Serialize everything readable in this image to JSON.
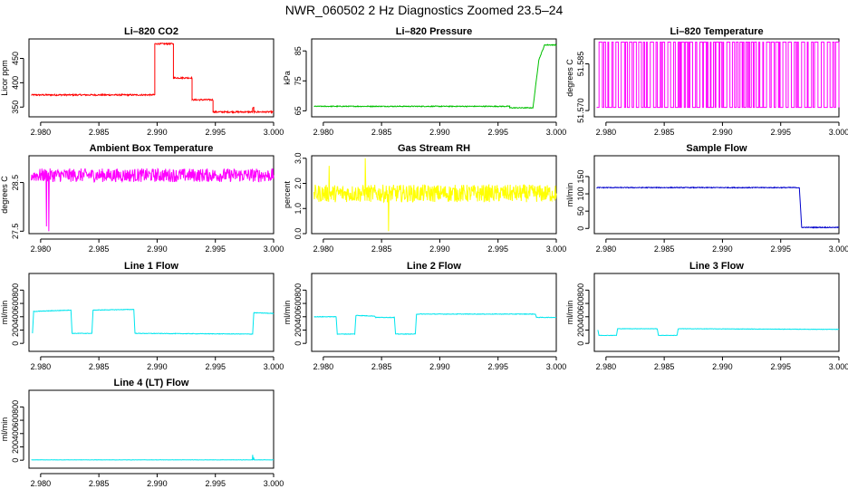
{
  "figure": {
    "title": "NWR_060502  2 Hz Diagnostics Zoomed 23.5–24"
  },
  "chart_data": [
    {
      "type": "line",
      "title": "Li–820 CO2",
      "ylabel": "Licor ppm",
      "color": "#ff0000",
      "xlim": [
        2.979,
        3.0
      ],
      "ylim": [
        330,
        490
      ],
      "xticks": [
        2.98,
        2.985,
        2.99,
        2.995,
        3.0
      ],
      "xtick_labels": [
        "2.980",
        "2.985",
        "2.990",
        "2.995",
        "3.000"
      ],
      "yticks": [
        350,
        400,
        450
      ],
      "ytick_labels": [
        "350",
        "400",
        "450"
      ],
      "series": [
        {
          "x": [
            2.9792,
            2.9898,
            2.9898,
            2.9914,
            2.9914,
            2.993,
            2.993,
            2.9948,
            2.9948,
            2.9982,
            2.9982,
            2.9983,
            2.9983,
            3.0
          ],
          "y": [
            375,
            375,
            480,
            480,
            410,
            410,
            365,
            365,
            340,
            340,
            348,
            348,
            340,
            340
          ],
          "noise": 1.5
        }
      ]
    },
    {
      "type": "line",
      "title": "Li–820 Pressure",
      "ylabel": "kPa",
      "color": "#00c000",
      "xlim": [
        2.979,
        3.0
      ],
      "ylim": [
        63,
        89
      ],
      "xticks": [
        2.98,
        2.985,
        2.99,
        2.995,
        3.0
      ],
      "xtick_labels": [
        "2.980",
        "2.985",
        "2.990",
        "2.995",
        "3.000"
      ],
      "yticks": [
        65,
        75,
        85
      ],
      "ytick_labels": [
        "65",
        "75",
        "85"
      ],
      "series": [
        {
          "x": [
            2.9792,
            2.996,
            2.996,
            2.998,
            2.9985,
            2.999,
            3.0
          ],
          "y": [
            66.5,
            66.5,
            66.0,
            66.0,
            82.0,
            87.0,
            87.0
          ],
          "noise": 0.15
        }
      ]
    },
    {
      "type": "line",
      "title": "Li–820 Temperature",
      "ylabel": "degrees C",
      "color": "#ff00ff",
      "xlim": [
        2.979,
        3.0
      ],
      "ylim": [
        51.568,
        51.593
      ],
      "xticks": [
        2.98,
        2.985,
        2.99,
        2.995,
        3.0
      ],
      "xtick_labels": [
        "2.980",
        "2.985",
        "2.990",
        "2.995",
        "3.000"
      ],
      "yticks": [
        51.57,
        51.585
      ],
      "ytick_labels": [
        "51.570",
        "51.585"
      ],
      "series": [
        {
          "x": [
            2.9792,
            3.0
          ],
          "y": [
            51.571,
            51.571
          ],
          "toggle_high": 51.592,
          "toggle_count": 120
        }
      ]
    },
    {
      "type": "line",
      "title": "Ambient Box Temperature",
      "ylabel": "degrees C",
      "color": "#ff00ff",
      "xlim": [
        2.979,
        3.0
      ],
      "ylim": [
        27.45,
        29.05
      ],
      "xticks": [
        2.98,
        2.985,
        2.99,
        2.995,
        3.0
      ],
      "xtick_labels": [
        "2.980",
        "2.985",
        "2.990",
        "2.995",
        "3.000"
      ],
      "yticks": [
        27.5,
        28.5
      ],
      "ytick_labels": [
        "27.5",
        "28.5"
      ],
      "series": [
        {
          "x": [
            2.9792,
            3.0
          ],
          "y": [
            28.65,
            28.65
          ],
          "noise": 0.14,
          "spikes": [
            [
              2.9807,
              27.5
            ],
            [
              2.9805,
              27.6
            ]
          ]
        }
      ]
    },
    {
      "type": "line",
      "title": "Gas Stream RH",
      "ylabel": "percent",
      "color": "#ffff00",
      "xlim": [
        2.979,
        3.0
      ],
      "ylim": [
        0,
        3.1
      ],
      "xticks": [
        2.98,
        2.985,
        2.99,
        2.995,
        3.0
      ],
      "xtick_labels": [
        "2.980",
        "2.985",
        "2.990",
        "2.995",
        "3.000"
      ],
      "yticks": [
        0.0,
        1.0,
        2.0,
        3.0
      ],
      "ytick_labels": [
        "0.0",
        "1.0",
        "2.0",
        "3.0"
      ],
      "series": [
        {
          "x": [
            2.9792,
            3.0
          ],
          "y": [
            1.6,
            1.6
          ],
          "noise": 0.35,
          "spikes": [
            [
              2.9836,
              3.0
            ],
            [
              2.9856,
              0.1
            ],
            [
              2.9805,
              2.7
            ]
          ]
        }
      ]
    },
    {
      "type": "line",
      "title": "Sample Flow",
      "ylabel": "ml/min",
      "color": "#0000cc",
      "xlim": [
        2.979,
        3.0
      ],
      "ylim": [
        -15,
        210
      ],
      "xticks": [
        2.98,
        2.985,
        2.99,
        2.995,
        3.0
      ],
      "xtick_labels": [
        "2.980",
        "2.985",
        "2.990",
        "2.995",
        "3.000"
      ],
      "yticks": [
        0,
        50,
        100,
        150
      ],
      "ytick_labels": [
        "0",
        "50",
        "100",
        "150"
      ],
      "series": [
        {
          "x": [
            2.9792,
            2.9966,
            2.9968,
            3.0
          ],
          "y": [
            118,
            118,
            3,
            3
          ],
          "noise": 1.2
        }
      ]
    },
    {
      "type": "line",
      "title": "Line 1 Flow",
      "ylabel": "ml/min",
      "color": "#00e5ee",
      "xlim": [
        2.979,
        3.0
      ],
      "ylim": [
        -120,
        1050
      ],
      "xticks": [
        2.98,
        2.985,
        2.99,
        2.995,
        3.0
      ],
      "xtick_labels": [
        "2.980",
        "2.985",
        "2.990",
        "2.995",
        "3.000"
      ],
      "yticks": [
        0,
        200,
        400,
        600,
        800
      ],
      "ytick_labels": [
        "0",
        "200",
        "400",
        "600",
        "800"
      ],
      "series": [
        {
          "x": [
            2.9793,
            2.9794,
            2.9826,
            2.9827,
            2.9844,
            2.9845,
            2.988,
            2.9881,
            2.9982,
            2.9983,
            3.0
          ],
          "y": [
            150,
            480,
            500,
            150,
            150,
            500,
            510,
            150,
            140,
            460,
            450
          ],
          "noise": 4
        }
      ]
    },
    {
      "type": "line",
      "title": "Line 2 Flow",
      "ylabel": "ml/min",
      "color": "#00e5ee",
      "xlim": [
        2.979,
        3.0
      ],
      "ylim": [
        -120,
        1050
      ],
      "xticks": [
        2.98,
        2.985,
        2.99,
        2.995,
        3.0
      ],
      "xtick_labels": [
        "2.980",
        "2.985",
        "2.990",
        "2.995",
        "3.000"
      ],
      "yticks": [
        0,
        200,
        400,
        600,
        800
      ],
      "ytick_labels": [
        "0",
        "200",
        "400",
        "600",
        "800"
      ],
      "series": [
        {
          "x": [
            2.9792,
            2.9811,
            2.9812,
            2.9827,
            2.9828,
            2.9844,
            2.9845,
            2.9861,
            2.9862,
            2.9879,
            2.988,
            2.9982,
            2.9983,
            3.0
          ],
          "y": [
            400,
            400,
            140,
            140,
            420,
            410,
            390,
            390,
            140,
            140,
            440,
            440,
            390,
            390
          ],
          "noise": 4
        }
      ]
    },
    {
      "type": "line",
      "title": "Line 3 Flow",
      "ylabel": "ml/min",
      "color": "#00e5ee",
      "xlim": [
        2.979,
        3.0
      ],
      "ylim": [
        -120,
        1050
      ],
      "xticks": [
        2.98,
        2.985,
        2.99,
        2.995,
        3.0
      ],
      "xtick_labels": [
        "2.980",
        "2.985",
        "2.990",
        "2.995",
        "3.000"
      ],
      "yticks": [
        0,
        200,
        400,
        600,
        800
      ],
      "ytick_labels": [
        "0",
        "200",
        "400",
        "600",
        "800"
      ],
      "series": [
        {
          "x": [
            2.9793,
            2.9794,
            2.9809,
            2.981,
            2.9844,
            2.9845,
            2.9861,
            2.9862,
            3.0
          ],
          "y": [
            200,
            120,
            120,
            220,
            220,
            120,
            120,
            220,
            210
          ],
          "noise": 3
        }
      ]
    },
    {
      "type": "line",
      "title": "Line 4 (LT) Flow",
      "ylabel": "ml/min",
      "color": "#00e5ee",
      "xlim": [
        2.979,
        3.0
      ],
      "ylim": [
        -120,
        1050
      ],
      "xticks": [
        2.98,
        2.985,
        2.99,
        2.995,
        3.0
      ],
      "xtick_labels": [
        "2.980",
        "2.985",
        "2.990",
        "2.995",
        "3.000"
      ],
      "yticks": [
        0,
        200,
        400,
        600,
        800
      ],
      "ytick_labels": [
        "0",
        "200",
        "400",
        "600",
        "800"
      ],
      "series": [
        {
          "x": [
            2.9792,
            3.0
          ],
          "y": [
            5,
            5
          ],
          "noise": 2,
          "spikes": [
            [
              2.9982,
              80
            ],
            [
              2.9983,
              40
            ]
          ]
        }
      ]
    }
  ]
}
